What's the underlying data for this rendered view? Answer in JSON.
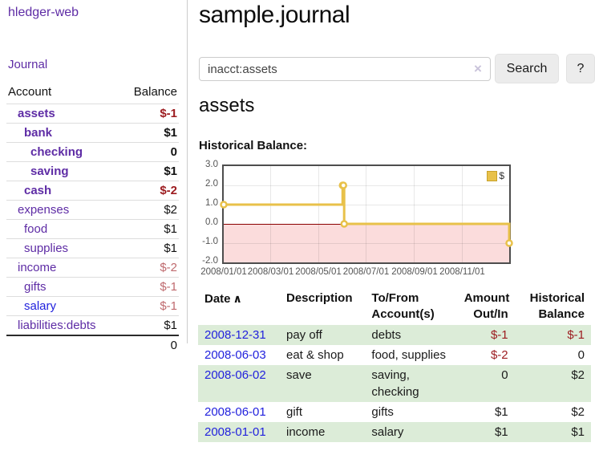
{
  "colors": {
    "accent_purple": "#5e2ca5",
    "link_blue": "#2222dd",
    "negative_red": "#9c1b1f",
    "negative_rose": "#bf6a6e",
    "row_green": "#dcecd8",
    "chart_line_gold": "#e8c14a",
    "chart_fill_pink": "#fbdcdc",
    "chart_zero_red": "#8b0000"
  },
  "sidebar": {
    "app_title": "hledger-web",
    "journal_link": "Journal",
    "accounts_header": {
      "account": "Account",
      "balance": "Balance"
    },
    "accounts": [
      {
        "name": "assets",
        "depth": 1,
        "bold": true,
        "balance": "$-1"
      },
      {
        "name": "bank",
        "depth": 2,
        "bold": true,
        "balance": "$1"
      },
      {
        "name": "checking",
        "depth": 3,
        "bold": true,
        "balance": "0"
      },
      {
        "name": "saving",
        "depth": 3,
        "bold": true,
        "balance": "$1"
      },
      {
        "name": "cash",
        "depth": 2,
        "bold": true,
        "balance": "$-2"
      },
      {
        "name": "expenses",
        "depth": 1,
        "bold": false,
        "balance": "$2"
      },
      {
        "name": "food",
        "depth": 2,
        "bold": false,
        "balance": "$1"
      },
      {
        "name": "supplies",
        "depth": 2,
        "bold": false,
        "balance": "$1"
      },
      {
        "name": "income",
        "depth": 1,
        "bold": false,
        "balance": "$-2"
      },
      {
        "name": "gifts",
        "depth": 2,
        "bold": false,
        "balance": "$-1"
      },
      {
        "name": "salary",
        "depth": 2,
        "bold": false,
        "balance": "$-1",
        "link_blue": true
      },
      {
        "name": "liabilities:debts",
        "depth": 1,
        "bold": false,
        "balance": "$1"
      }
    ],
    "total": "0"
  },
  "header": {
    "title": "sample.journal"
  },
  "search": {
    "value": "inacct:assets",
    "clear_icon": "×",
    "button_label": "Search",
    "help_label": "?"
  },
  "account_page": {
    "heading": "assets",
    "chart_label": "Historical Balance:"
  },
  "chart_data": {
    "type": "line",
    "style": "step",
    "title": "Historical Balance",
    "xlabel": "",
    "ylabel": "",
    "x_unit": "days since 2008-01-01",
    "xlim": [
      0,
      365
    ],
    "ylim": [
      -2,
      3
    ],
    "grid": true,
    "negative_region_shaded": true,
    "legend_position": "top-right",
    "series": [
      {
        "name": "$",
        "points": [
          {
            "date": "2008-01-01",
            "x": 0,
            "y": 1
          },
          {
            "date": "2008-06-01",
            "x": 152,
            "y": 2
          },
          {
            "date": "2008-06-02",
            "x": 153,
            "y": 2
          },
          {
            "date": "2008-06-03",
            "x": 154,
            "y": 0
          },
          {
            "date": "2008-12-31",
            "x": 365,
            "y": -1
          }
        ]
      }
    ],
    "y_ticks": [
      {
        "label": "3.0",
        "value": 3
      },
      {
        "label": "2.0",
        "value": 2
      },
      {
        "label": "1.0",
        "value": 1
      },
      {
        "label": "0.0",
        "value": 0
      },
      {
        "label": "-1.0",
        "value": -1
      },
      {
        "label": "-2.0",
        "value": -2
      }
    ],
    "x_ticks": [
      {
        "label": "2008/01/01",
        "day": 0
      },
      {
        "label": "2008/03/01",
        "day": 60
      },
      {
        "label": "2008/05/01",
        "day": 121
      },
      {
        "label": "2008/07/01",
        "day": 182
      },
      {
        "label": "2008/09/01",
        "day": 244
      },
      {
        "label": "2008/11/01",
        "day": 305
      }
    ],
    "legend": {
      "label": "$"
    }
  },
  "transactions": {
    "headers": {
      "date": "Date",
      "sort_icon": "∧",
      "description": "Description",
      "accounts": "To/From Account(s)",
      "amount": "Amount Out/In",
      "balance": "Historical Balance"
    },
    "rows": [
      {
        "date": "2008-12-31",
        "description": "pay off",
        "accounts": "debts",
        "amount": "$-1",
        "balance": "$-1"
      },
      {
        "date": "2008-06-03",
        "description": "eat & shop",
        "accounts": "food, supplies",
        "amount": "$-2",
        "balance": "0"
      },
      {
        "date": "2008-06-02",
        "description": "save",
        "accounts": "saving, checking",
        "amount": "0",
        "balance": "$2"
      },
      {
        "date": "2008-06-01",
        "description": "gift",
        "accounts": "gifts",
        "amount": "$1",
        "balance": "$2"
      },
      {
        "date": "2008-01-01",
        "description": "income",
        "accounts": "salary",
        "amount": "$1",
        "balance": "$1"
      }
    ]
  }
}
